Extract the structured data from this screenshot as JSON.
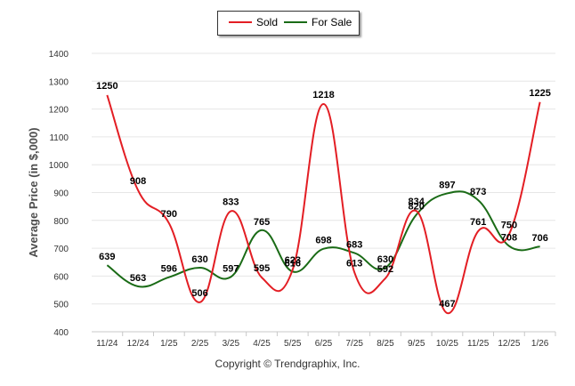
{
  "chart_data": {
    "type": "line",
    "categories": [
      "11/24",
      "12/24",
      "1/25",
      "2/25",
      "3/25",
      "4/25",
      "5/25",
      "6/25",
      "7/25",
      "8/25",
      "9/25",
      "10/25",
      "11/25",
      "12/25",
      "1/26"
    ],
    "series": [
      {
        "name": "Sold",
        "color": "#e31e24",
        "values": [
          1250,
          908,
          790,
          506,
          833,
          595,
          623,
          1218,
          613,
          592,
          834,
          467,
          761,
          750,
          1225
        ]
      },
      {
        "name": "For Sale",
        "color": "#1a6b16",
        "values": [
          639,
          563,
          596,
          630,
          597,
          765,
          616,
          698,
          683,
          630,
          820,
          897,
          873,
          708,
          706
        ]
      }
    ],
    "ylabel": "Average Price (in $,000)",
    "xlabel": "",
    "ylim": [
      400,
      1400
    ],
    "yticks": [
      400,
      500,
      600,
      700,
      800,
      900,
      1000,
      1100,
      1200,
      1300,
      1400
    ],
    "legend_position": "top-center",
    "grid": true
  },
  "legend": {
    "sold_label": "Sold",
    "for_sale_label": "For Sale"
  },
  "footer": {
    "copyright": "Copyright © Trendgraphix, Inc."
  }
}
